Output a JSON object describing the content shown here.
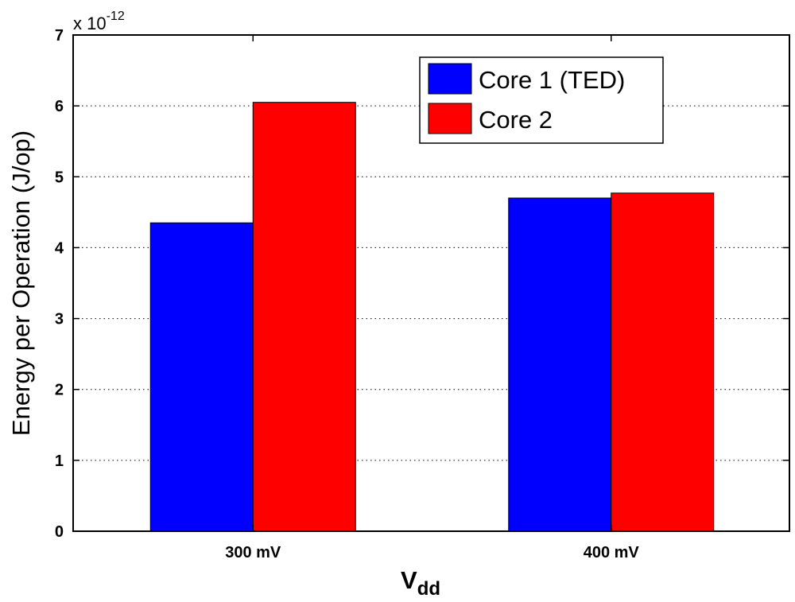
{
  "chart_data": {
    "type": "bar",
    "categories": [
      "300 mV",
      "400 mV"
    ],
    "series": [
      {
        "name": "Core 1 (TED)",
        "color": "#0000ff",
        "values": [
          4.35,
          4.7
        ]
      },
      {
        "name": "Core 2",
        "color": "#ff0000",
        "values": [
          6.05,
          4.77
        ]
      }
    ],
    "ylim": [
      0,
      7
    ],
    "yticks": [
      "0",
      "1",
      "2",
      "3",
      "4",
      "5",
      "6",
      "7"
    ],
    "ylabel": "Energy per Operation (J/op)",
    "xlabel_main": "V",
    "xlabel_sub": "dd",
    "multiplier_base": "x 10",
    "multiplier_exp": "-12",
    "grid": "y-dotted",
    "legend_position": "top-right"
  }
}
